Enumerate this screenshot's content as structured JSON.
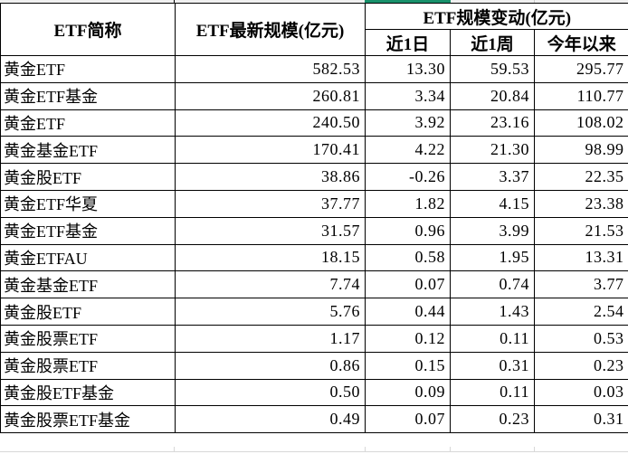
{
  "colors": {
    "green_accent": "#18916B",
    "top_strip": "#F0F0F0",
    "grid_line": "#D8D8D8",
    "table_border": "#000000"
  },
  "table": {
    "headers": {
      "name_col": "ETF简称",
      "latest_scale_col": "ETF最新规模(亿元)",
      "change_group": "ETF规模变动(亿元)",
      "sub_1d": "近1日",
      "sub_1w": "近1周",
      "sub_ytd": "今年以来"
    },
    "rows": [
      {
        "name": "黄金ETF",
        "latest": "582.53",
        "d1": "13.30",
        "w1": "59.53",
        "ytd": "295.77"
      },
      {
        "name": "黄金ETF基金",
        "latest": "260.81",
        "d1": "3.34",
        "w1": "20.84",
        "ytd": "110.77"
      },
      {
        "name": "黄金ETF",
        "latest": "240.50",
        "d1": "3.92",
        "w1": "23.16",
        "ytd": "108.02"
      },
      {
        "name": "黄金基金ETF",
        "latest": "170.41",
        "d1": "4.22",
        "w1": "21.30",
        "ytd": "98.99"
      },
      {
        "name": "黄金股ETF",
        "latest": "38.86",
        "d1": "-0.26",
        "w1": "3.37",
        "ytd": "22.35"
      },
      {
        "name": "黄金ETF华夏",
        "latest": "37.77",
        "d1": "1.82",
        "w1": "4.15",
        "ytd": "23.38"
      },
      {
        "name": "黄金ETF基金",
        "latest": "31.57",
        "d1": "0.96",
        "w1": "3.99",
        "ytd": "21.53"
      },
      {
        "name": "黄金ETFAU",
        "latest": "18.15",
        "d1": "0.58",
        "w1": "1.95",
        "ytd": "13.31"
      },
      {
        "name": "黄金基金ETF",
        "latest": "7.74",
        "d1": "0.07",
        "w1": "0.74",
        "ytd": "3.77"
      },
      {
        "name": "黄金股ETF",
        "latest": "5.76",
        "d1": "0.44",
        "w1": "1.43",
        "ytd": "2.54"
      },
      {
        "name": "黄金股票ETF",
        "latest": "1.17",
        "d1": "0.12",
        "w1": "0.11",
        "ytd": "0.53"
      },
      {
        "name": "黄金股票ETF",
        "latest": "0.86",
        "d1": "0.15",
        "w1": "0.31",
        "ytd": "0.23"
      },
      {
        "name": "黄金股ETF基金",
        "latest": "0.50",
        "d1": "0.09",
        "w1": "0.11",
        "ytd": "0.03"
      },
      {
        "name": "黄金股票ETF基金",
        "latest": "0.49",
        "d1": "0.07",
        "w1": "0.23",
        "ytd": "0.31"
      }
    ]
  }
}
